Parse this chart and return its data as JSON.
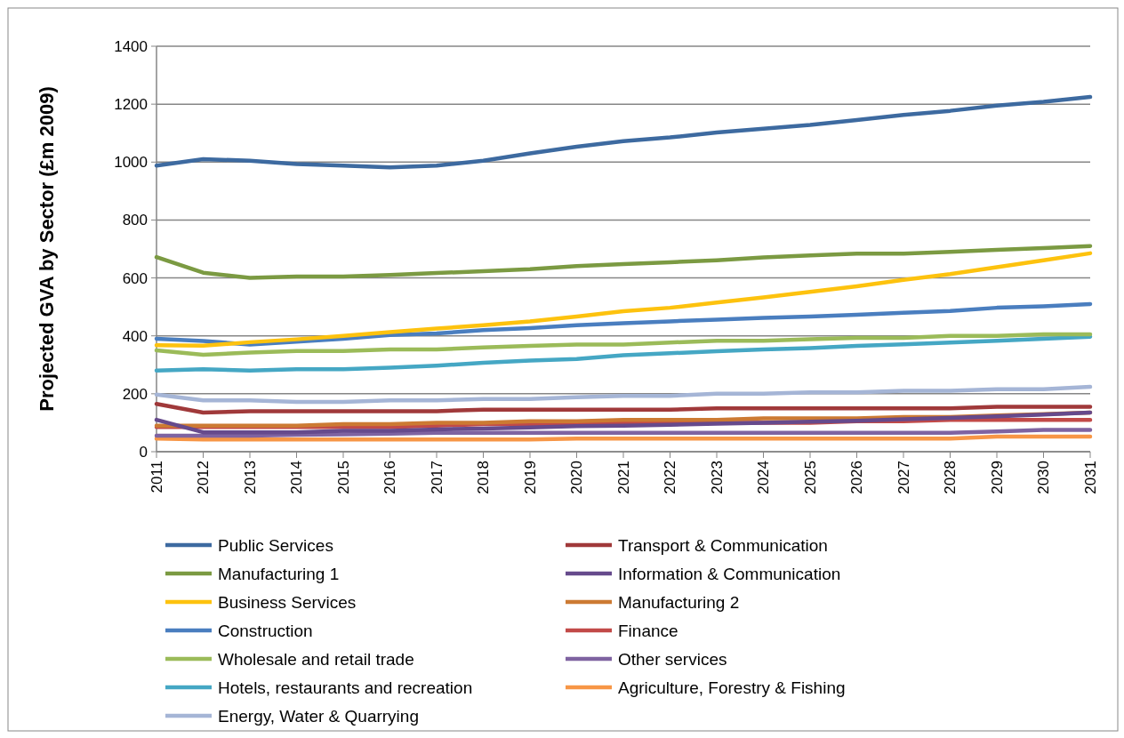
{
  "chart_data": {
    "type": "line",
    "ylabel": "Projected GVA by Sector (£m 2009)",
    "categories": [
      "2011",
      "2012",
      "2013",
      "2014",
      "2015",
      "2016",
      "2017",
      "2018",
      "2019",
      "2020",
      "2021",
      "2022",
      "2023",
      "2024",
      "2025",
      "2026",
      "2027",
      "2028",
      "2029",
      "2030",
      "2031"
    ],
    "ylim": [
      0,
      1400
    ],
    "yticks": [
      0,
      200,
      400,
      600,
      800,
      1000,
      1200,
      1400
    ],
    "grid": "y",
    "legend": "bottom",
    "marker": "none",
    "line_style": "solid",
    "series": [
      {
        "name": "Public Services",
        "color": "#3d6aa0",
        "values": [
          988,
          1010,
          1005,
          993,
          988,
          982,
          988,
          1005,
          1030,
          1053,
          1072,
          1085,
          1102,
          1115,
          1128,
          1145,
          1163,
          1177,
          1195,
          1208,
          1225
        ]
      },
      {
        "name": "Transport & Communication",
        "color": "#a0393a",
        "values": [
          165,
          135,
          140,
          140,
          140,
          140,
          140,
          145,
          145,
          145,
          145,
          145,
          150,
          150,
          150,
          150,
          150,
          150,
          155,
          155,
          155
        ]
      },
      {
        "name": "Manufacturing 1",
        "color": "#7b9a42",
        "values": [
          672,
          618,
          600,
          605,
          605,
          610,
          617,
          623,
          630,
          641,
          648,
          654,
          661,
          671,
          678,
          684,
          684,
          690,
          697,
          703,
          710
        ]
      },
      {
        "name": "Information & Communication",
        "color": "#664a8c",
        "values": [
          110,
          67,
          67,
          67,
          72,
          72,
          77,
          80,
          84,
          88,
          90,
          93,
          97,
          100,
          104,
          107,
          112,
          117,
          122,
          128,
          135
        ]
      },
      {
        "name": "Business Services",
        "color": "#fdc20e",
        "values": [
          368,
          366,
          378,
          388,
          400,
          413,
          425,
          437,
          450,
          467,
          485,
          497,
          515,
          533,
          552,
          571,
          593,
          613,
          637,
          661,
          685
        ]
      },
      {
        "name": "Manufacturing 2",
        "color": "#cc7a33",
        "values": [
          90,
          90,
          90,
          90,
          95,
          95,
          100,
          100,
          105,
          105,
          110,
          110,
          110,
          115,
          115,
          115,
          120,
          120,
          125,
          130,
          135
        ]
      },
      {
        "name": "Construction",
        "color": "#4a7ebf",
        "values": [
          390,
          382,
          370,
          380,
          390,
          403,
          408,
          420,
          427,
          437,
          444,
          450,
          456,
          462,
          467,
          473,
          480,
          486,
          497,
          502,
          510
        ]
      },
      {
        "name": "Finance",
        "color": "#c24a48",
        "values": [
          85,
          85,
          85,
          85,
          85,
          85,
          90,
          95,
          95,
          95,
          100,
          100,
          100,
          100,
          100,
          105,
          105,
          110,
          110,
          110,
          110
        ]
      },
      {
        "name": "Wholesale and retail trade",
        "color": "#9bbb59",
        "values": [
          350,
          335,
          342,
          348,
          348,
          353,
          353,
          360,
          365,
          370,
          370,
          377,
          383,
          383,
          388,
          393,
          393,
          400,
          400,
          405,
          405
        ]
      },
      {
        "name": "Other services",
        "color": "#7f63a1",
        "values": [
          55,
          55,
          55,
          58,
          60,
          62,
          65,
          65,
          65,
          65,
          65,
          65,
          65,
          65,
          65,
          65,
          65,
          65,
          70,
          75,
          75
        ]
      },
      {
        "name": "Hotels, restaurants and recreation",
        "color": "#45a7c4",
        "values": [
          280,
          285,
          280,
          285,
          285,
          290,
          297,
          307,
          315,
          320,
          333,
          340,
          347,
          353,
          358,
          365,
          371,
          377,
          383,
          390,
          397
        ]
      },
      {
        "name": "Agriculture, Forestry & Fishing",
        "color": "#f79646",
        "values": [
          45,
          42,
          42,
          42,
          42,
          42,
          42,
          42,
          42,
          45,
          45,
          45,
          45,
          45,
          45,
          45,
          45,
          45,
          52,
          52,
          52
        ]
      },
      {
        "name": "Energy, Water & Quarrying",
        "color": "#a5b5d6",
        "values": [
          197,
          177,
          177,
          172,
          172,
          177,
          177,
          182,
          182,
          188,
          193,
          193,
          200,
          200,
          205,
          205,
          210,
          210,
          216,
          216,
          224
        ]
      }
    ]
  }
}
